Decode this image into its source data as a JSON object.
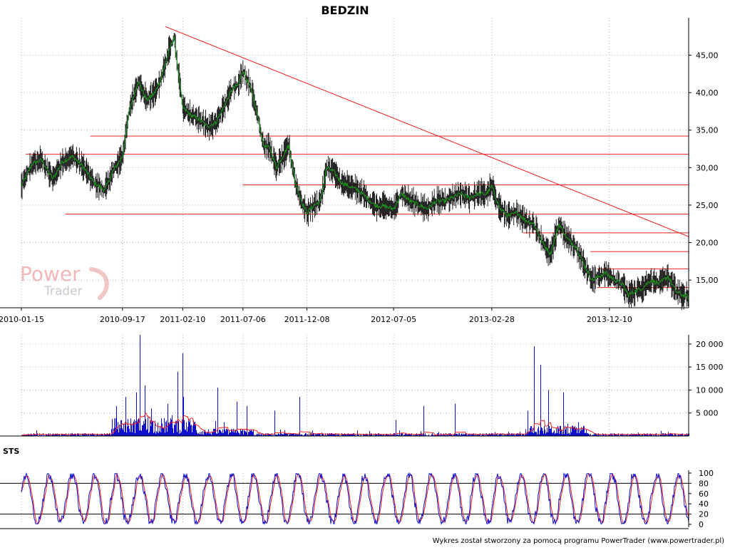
{
  "title": "BEDZIN",
  "footer": "Wykres został stworzony za pomocą programu PowerTrader (www.powertrader.pl)",
  "watermark": {
    "line1": "Power",
    "line2": "Trader"
  },
  "colors": {
    "price_line": "#1a9a1a",
    "candle": "#000000",
    "trend": "#ee2222",
    "volume_bar": "#1010cc",
    "volume_avg": "#ee2222",
    "sts_k": "#1010cc",
    "sts_d": "#ee2222",
    "watermark": "#f0b8b8"
  },
  "chart_data": [
    {
      "type": "line",
      "panel": "price",
      "title": "BEDZIN",
      "x_tick_labels": [
        "2010-01-15",
        "2010-09-17",
        "2011-02-10",
        "2011-07-06",
        "2011-12-08",
        "2012-07-05",
        "2013-02-28",
        "2013-12-10"
      ],
      "y_tick_labels": [
        "45,00",
        "40,00",
        "35,00",
        "30,00",
        "25,00",
        "20,00",
        "15,00"
      ],
      "ylim": [
        11.5,
        49.5
      ],
      "x_range": [
        "2010-01-15",
        "2014-06-20"
      ],
      "grid": true,
      "series": [
        {
          "values_by_date": {
            "dates": [
              "2010-01-15",
              "2010-02-10",
              "2010-03-05",
              "2010-04-01",
              "2010-04-25",
              "2010-05-20",
              "2010-06-15",
              "2010-07-10",
              "2010-08-05",
              "2010-08-25",
              "2010-09-17",
              "2010-10-05",
              "2010-10-25",
              "2010-11-15",
              "2010-12-05",
              "2010-12-20",
              "2011-01-05",
              "2011-01-20",
              "2011-02-10",
              "2011-03-01",
              "2011-03-20",
              "2011-04-10",
              "2011-05-01",
              "2011-05-20",
              "2011-06-10",
              "2011-06-25",
              "2011-07-06",
              "2011-07-25",
              "2011-08-10",
              "2011-08-25",
              "2011-09-10",
              "2011-09-25",
              "2011-10-10",
              "2011-10-25",
              "2011-11-10",
              "2011-11-25",
              "2011-12-08",
              "2011-12-25",
              "2012-01-10",
              "2012-01-25",
              "2012-02-10",
              "2012-03-01",
              "2012-03-20",
              "2012-04-10",
              "2012-05-01",
              "2012-05-20",
              "2012-06-15",
              "2012-07-05",
              "2012-07-25",
              "2012-08-15",
              "2012-09-05",
              "2012-09-25",
              "2012-10-15",
              "2012-11-05",
              "2012-11-25",
              "2012-12-15",
              "2013-01-05",
              "2013-01-25",
              "2013-02-15",
              "2013-02-28",
              "2013-03-20",
              "2013-04-10",
              "2013-05-01",
              "2013-05-20",
              "2013-06-10",
              "2013-07-01",
              "2013-07-20",
              "2013-08-10",
              "2013-08-30",
              "2013-09-20",
              "2013-10-10",
              "2013-10-30",
              "2013-11-15",
              "2013-12-01",
              "2013-12-10",
              "2013-12-25",
              "2014-01-10",
              "2014-01-25",
              "2014-02-10",
              "2014-03-01",
              "2014-03-20",
              "2014-04-10",
              "2014-05-01",
              "2014-05-20",
              "2014-06-05",
              "2014-06-20"
            ],
            "close": [
              27.5,
              30.5,
              31.0,
              28.5,
              30.8,
              31.5,
              30.0,
              28.0,
              27.0,
              29.5,
              31.5,
              38.0,
              41.5,
              39.0,
              40.0,
              42.0,
              45.0,
              47.5,
              38.0,
              37.0,
              36.5,
              35.5,
              36.0,
              38.0,
              40.5,
              41.0,
              43.0,
              40.5,
              37.0,
              33.0,
              32.5,
              30.0,
              31.5,
              33.0,
              28.0,
              25.5,
              24.0,
              25.0,
              25.5,
              30.0,
              29.5,
              28.0,
              27.5,
              27.0,
              26.0,
              25.0,
              24.8,
              24.5,
              26.5,
              25.5,
              25.0,
              24.5,
              25.5,
              25.5,
              26.0,
              26.5,
              26.0,
              26.5,
              26.5,
              27.5,
              24.5,
              23.5,
              24.0,
              23.0,
              22.5,
              20.0,
              18.5,
              22.5,
              20.5,
              19.5,
              17.0,
              15.0,
              15.5,
              16.0,
              15.5,
              15.0,
              14.5,
              13.0,
              13.5,
              14.0,
              15.0,
              14.5,
              15.5,
              13.5,
              13.0,
              12.8
            ]
          }
        }
      ],
      "trend_lines": [
        {
          "start": [
            "2010-12-30",
            48.8
          ],
          "end": [
            "2014-06-20",
            20.8
          ]
        },
        {
          "start": [
            "2010-01-25",
            31.8
          ],
          "end": [
            "2014-06-20",
            31.8
          ]
        },
        {
          "start": [
            "2010-07-01",
            34.2
          ],
          "end": [
            "2014-06-20",
            34.2
          ]
        },
        {
          "start": [
            "2010-05-01",
            23.8
          ],
          "end": [
            "2014-06-20",
            23.8
          ]
        },
        {
          "start": [
            "2011-07-05",
            27.7
          ],
          "end": [
            "2014-06-20",
            27.7
          ]
        },
        {
          "start": [
            "2013-05-15",
            21.3
          ],
          "end": [
            "2014-06-20",
            21.3
          ]
        },
        {
          "start": [
            "2013-10-25",
            18.8
          ],
          "end": [
            "2014-06-20",
            18.8
          ]
        },
        {
          "start": [
            "2013-11-10",
            16.5
          ],
          "end": [
            "2014-06-20",
            16.5
          ]
        },
        {
          "start": [
            "2013-11-10",
            14.0
          ],
          "end": [
            "2014-06-20",
            14.0
          ]
        }
      ]
    },
    {
      "type": "bar",
      "panel": "volume",
      "y_tick_labels": [
        "20 000",
        "15 000",
        "10 000",
        "5 000"
      ],
      "ylim": [
        0,
        22000
      ],
      "grid": true,
      "spikes": [
        {
          "date": "2010-09-01",
          "value": 6500
        },
        {
          "date": "2010-09-25",
          "value": 8500
        },
        {
          "date": "2010-10-20",
          "value": 9500
        },
        {
          "date": "2010-10-28",
          "value": 22000
        },
        {
          "date": "2010-11-10",
          "value": 11000
        },
        {
          "date": "2010-11-25",
          "value": 6000
        },
        {
          "date": "2011-01-05",
          "value": 7000
        },
        {
          "date": "2011-01-15",
          "value": 4500
        },
        {
          "date": "2011-01-28",
          "value": 14000
        },
        {
          "date": "2011-02-10",
          "value": 18000
        },
        {
          "date": "2011-05-05",
          "value": 10500
        },
        {
          "date": "2011-06-20",
          "value": 7500
        },
        {
          "date": "2011-07-15",
          "value": 6500
        },
        {
          "date": "2011-09-20",
          "value": 5500
        },
        {
          "date": "2011-11-20",
          "value": 8500
        },
        {
          "date": "2012-07-10",
          "value": 3500
        },
        {
          "date": "2012-09-15",
          "value": 6500
        },
        {
          "date": "2012-12-01",
          "value": 7000
        },
        {
          "date": "2013-05-25",
          "value": 5500
        },
        {
          "date": "2013-06-10",
          "value": 19500
        },
        {
          "date": "2013-06-25",
          "value": 15500
        },
        {
          "date": "2013-07-15",
          "value": 10000
        },
        {
          "date": "2013-08-20",
          "value": 9500
        },
        {
          "date": "2013-09-25",
          "value": 3000
        }
      ]
    },
    {
      "type": "line",
      "panel": "STS",
      "title": "STS",
      "y_tick_labels": [
        "100",
        "80",
        "60",
        "40",
        "20",
        "0"
      ],
      "ylim": [
        0,
        100
      ],
      "reference_levels": [
        80,
        20
      ],
      "series": [
        {
          "series_id": "K"
        },
        {
          "series_id": "D"
        }
      ]
    }
  ]
}
